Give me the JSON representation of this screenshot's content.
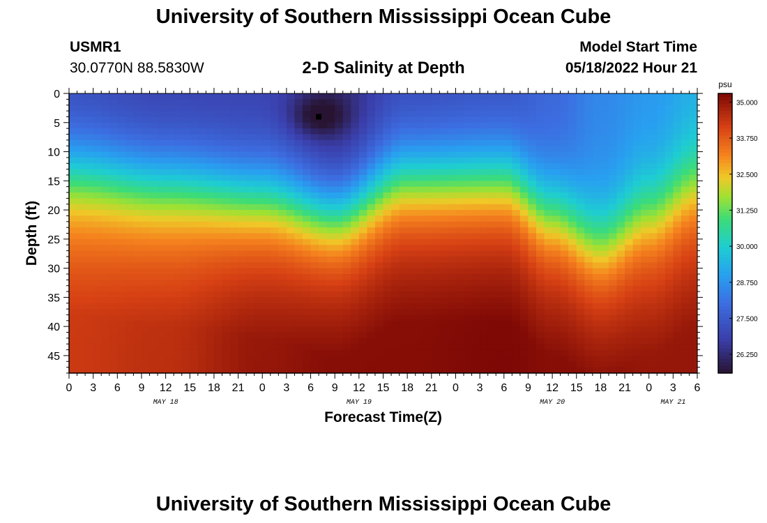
{
  "header": {
    "title": "University of Southern Mississippi Ocean Cube",
    "station_id": "USMR1",
    "station_coords": "30.0770N  88.5830W",
    "subtitle": "2-D Salinity at Depth",
    "model_start_label": "Model Start Time",
    "model_start_value": "05/18/2022 Hour 21"
  },
  "footer": {
    "title": "University of Southern Mississippi Ocean Cube"
  },
  "chart_data": {
    "type": "heatmap",
    "title": "2-D Salinity at Depth",
    "xlabel": "Forecast Time(Z)",
    "ylabel": "Depth (ft)",
    "x_tick_labels": [
      "0",
      "3",
      "6",
      "9",
      "12",
      "15",
      "18",
      "21",
      "0",
      "3",
      "6",
      "9",
      "12",
      "15",
      "18",
      "21",
      "0",
      "3",
      "6",
      "9",
      "12",
      "15",
      "18",
      "21",
      "0",
      "3",
      "6"
    ],
    "x_range_hours": [
      0,
      78
    ],
    "date_labels": [
      {
        "label": "MAY 18",
        "hour": 12
      },
      {
        "label": "MAY 19",
        "hour": 36
      },
      {
        "label": "MAY 20",
        "hour": 60
      },
      {
        "label": "MAY 21",
        "hour": 75
      }
    ],
    "y_ticks": [
      0,
      5,
      10,
      15,
      20,
      25,
      30,
      35,
      40,
      45
    ],
    "y_range_ft": [
      0,
      48
    ],
    "y_inverted": true,
    "colorbar": {
      "unit": "psu",
      "range": [
        25.6,
        35.3
      ],
      "ticks": [
        "35.000",
        "33.750",
        "32.500",
        "31.250",
        "30.000",
        "28.750",
        "27.500",
        "26.250"
      ],
      "tick_values": [
        35.0,
        33.75,
        32.5,
        31.25,
        30.0,
        28.75,
        27.5,
        26.25
      ]
    },
    "field": {
      "description_hours": [
        0,
        12,
        24,
        33,
        42,
        54,
        60,
        66,
        72,
        78
      ],
      "halocline_depth_ft": [
        13,
        15,
        17,
        20,
        14,
        14,
        20,
        25,
        20,
        15
      ],
      "surface_salinity_psu": [
        27.0,
        26.8,
        26.8,
        26.2,
        27.0,
        27.2,
        27.8,
        28.5,
        28.8,
        29.2
      ],
      "bottom_salinity_psu": [
        34.3,
        34.5,
        35.0,
        35.2,
        35.2,
        35.3,
        35.2,
        35.2,
        35.0,
        35.0
      ],
      "min_salinity_psu": 25.8,
      "min_location": {
        "hour": 31,
        "depth_ft": 4
      }
    },
    "marker": {
      "hour": 31,
      "depth_ft": 4
    }
  }
}
